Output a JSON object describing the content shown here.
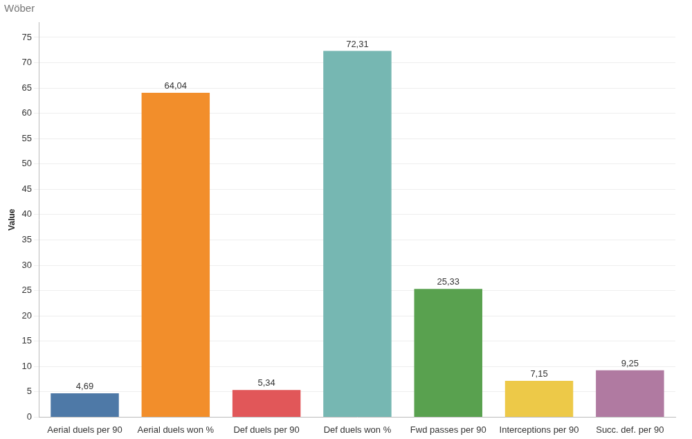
{
  "chart_data": {
    "type": "bar",
    "title": "Wöber",
    "y_label": "Value",
    "categories": [
      "Aerial duels per 90",
      "Aerial duels won %",
      "Def duels per 90",
      "Def duels won %",
      "Fwd passes per 90",
      "Interceptions per 90",
      "Succ. def. per 90"
    ],
    "values": [
      4.69,
      64.04,
      5.34,
      72.31,
      25.33,
      7.15,
      9.25
    ],
    "value_labels": [
      "4,69",
      "64,04",
      "5,34",
      "72,31",
      "25,33",
      "7,15",
      "9,25"
    ],
    "colors": [
      "#4e79a7",
      "#f28e2b",
      "#e15759",
      "#76b7b2",
      "#59a14f",
      "#edc948",
      "#b07aa1"
    ],
    "ylim": [
      0,
      78
    ],
    "yticks": [
      0,
      5,
      10,
      15,
      20,
      25,
      30,
      35,
      40,
      45,
      50,
      55,
      60,
      65,
      70,
      75
    ],
    "grid": true,
    "data_labels": true
  }
}
